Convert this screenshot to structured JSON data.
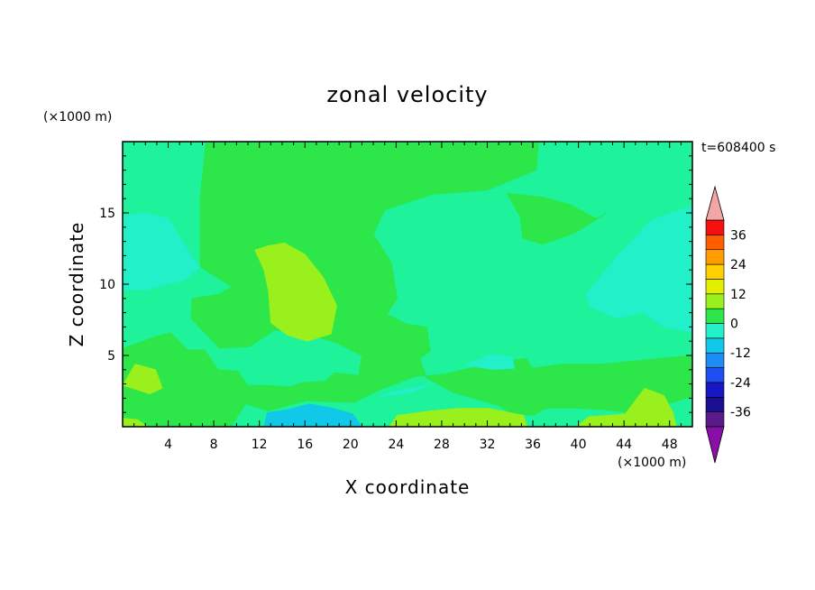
{
  "chart_data": {
    "type": "heatmap",
    "title": "zonal velocity",
    "xlabel": "X coordinate",
    "ylabel": "Z coordinate",
    "x_unit": "(×1000 m)",
    "y_unit": "(×1000 m)",
    "time_label": "t=608400 s",
    "xlim": [
      0,
      50
    ],
    "ylim": [
      0,
      20
    ],
    "x_ticks": [
      4,
      8,
      12,
      16,
      20,
      24,
      28,
      32,
      36,
      40,
      44,
      48
    ],
    "y_ticks": [
      5,
      10,
      15
    ],
    "colorbar": {
      "levels": [
        -42,
        -36,
        -30,
        -24,
        -18,
        -12,
        -6,
        0,
        6,
        12,
        18,
        24,
        30,
        36,
        42
      ],
      "tick_labels": [
        "36",
        "24",
        "12",
        "0",
        "-12",
        "-24",
        "-36"
      ],
      "colors": [
        "#5b1a8c",
        "#1a0f8f",
        "#1717c4",
        "#1f4ff0",
        "#1e8cf5",
        "#11c8e8",
        "#21f0c8",
        "#2ce64a",
        "#9af01c",
        "#e1f000",
        "#ffcf00",
        "#ff9d00",
        "#ff5e00",
        "#f50f0f"
      ],
      "over_color": "#f4a5a5",
      "under_color": "#8a0fa8"
    },
    "background_level_color": "#1ef29a",
    "regions": [
      {
        "level": "0 to 6",
        "color": "#2ce64a",
        "polygon": [
          [
            7.3,
            19.9
          ],
          [
            10.4,
            19.9
          ],
          [
            19.9,
            19.9
          ],
          [
            36.5,
            19.9
          ],
          [
            36.3,
            18.0
          ],
          [
            32.0,
            16.6
          ],
          [
            27.2,
            16.3
          ],
          [
            23.0,
            15.2
          ],
          [
            22.0,
            13.5
          ],
          [
            23.6,
            11.5
          ],
          [
            24.1,
            9.0
          ],
          [
            23.2,
            7.9
          ],
          [
            24.9,
            7.2
          ],
          [
            26.7,
            7.0
          ],
          [
            27.0,
            5.3
          ],
          [
            26.1,
            4.8
          ],
          [
            26.7,
            3.4
          ],
          [
            29.0,
            2.4
          ],
          [
            31.2,
            1.9
          ],
          [
            32.9,
            1.5
          ],
          [
            34.2,
            0.9
          ],
          [
            36.1,
            0.8
          ],
          [
            36.7,
            1.1
          ],
          [
            37.3,
            1.3
          ],
          [
            39.6,
            1.3
          ],
          [
            42.0,
            1.2
          ],
          [
            45.6,
            0.9
          ],
          [
            47.0,
            1.4
          ],
          [
            49.9,
            2.1
          ],
          [
            49.9,
            5.0
          ],
          [
            46.0,
            4.7
          ],
          [
            42.0,
            4.4
          ],
          [
            38.5,
            4.4
          ],
          [
            36.0,
            4.1
          ],
          [
            35.4,
            4.8
          ],
          [
            32.0,
            4.4
          ],
          [
            28.3,
            3.7
          ],
          [
            25.6,
            3.5
          ],
          [
            22.6,
            2.6
          ],
          [
            20.3,
            1.7
          ],
          [
            16.0,
            1.8
          ],
          [
            12.8,
            1.1
          ],
          [
            10.8,
            1.6
          ],
          [
            9.5,
            0.0
          ],
          [
            0,
            0
          ],
          [
            0,
            5.5
          ],
          [
            2.8,
            6.3
          ],
          [
            4.2,
            6.6
          ],
          [
            5.7,
            5.4
          ],
          [
            7.2,
            5.4
          ],
          [
            8.4,
            4.0
          ],
          [
            10.1,
            3.9
          ],
          [
            11.0,
            2.9
          ],
          [
            12.8,
            2.9
          ],
          [
            14.6,
            2.8
          ],
          [
            15.8,
            3.1
          ],
          [
            17.8,
            3.2
          ],
          [
            18.6,
            3.8
          ],
          [
            20.7,
            3.6
          ],
          [
            21.0,
            5.0
          ],
          [
            18.7,
            5.9
          ],
          [
            16.6,
            6.4
          ],
          [
            13.4,
            6.8
          ],
          [
            11.1,
            5.6
          ],
          [
            8.5,
            5.5
          ],
          [
            6.0,
            7.6
          ],
          [
            6.1,
            9.0
          ],
          [
            8.4,
            9.3
          ],
          [
            9.6,
            9.8
          ],
          [
            6.8,
            11.2
          ],
          [
            6.8,
            13.0
          ],
          [
            6.8,
            16.1
          ],
          [
            7.3,
            19.9
          ]
        ]
      },
      {
        "level": "0 to 6",
        "color": "#2ce64a",
        "polygon": [
          [
            33.7,
            16.4
          ],
          [
            36.9,
            16.1
          ],
          [
            39.2,
            15.6
          ],
          [
            41.6,
            14.6
          ],
          [
            42.5,
            15.0
          ],
          [
            39.7,
            13.6
          ],
          [
            36.9,
            12.8
          ],
          [
            35.1,
            13.2
          ],
          [
            34.9,
            14.7
          ],
          [
            33.7,
            16.4
          ]
        ]
      },
      {
        "level": "-6 to 0",
        "color": "#21f0c8",
        "polygon": [
          [
            0,
            14.8
          ],
          [
            2.0,
            15.0
          ],
          [
            4.0,
            14.6
          ],
          [
            6.2,
            11.8
          ],
          [
            6.8,
            11.2
          ],
          [
            5.4,
            10.3
          ],
          [
            2.1,
            9.6
          ],
          [
            0,
            9.6
          ]
        ]
      },
      {
        "level": "-6 to 0",
        "color": "#21f0c8",
        "polygon": [
          [
            40.7,
            9.3
          ],
          [
            43.3,
            11.9
          ],
          [
            46.4,
            14.5
          ],
          [
            49.9,
            15.5
          ],
          [
            49.9,
            6.6
          ],
          [
            47.5,
            7.0
          ],
          [
            45.6,
            8.0
          ],
          [
            43.4,
            7.6
          ],
          [
            41.0,
            8.4
          ],
          [
            40.7,
            9.3
          ]
        ]
      },
      {
        "level": "-6 to 0",
        "color": "#21f0c8",
        "polygon": [
          [
            30.0,
            4.3
          ],
          [
            32.3,
            5.1
          ],
          [
            34.2,
            4.9
          ],
          [
            34.4,
            4.1
          ],
          [
            32.6,
            4.0
          ],
          [
            30.0,
            4.3
          ]
        ]
      },
      {
        "level": "-6 to 0",
        "color": "#21f0c8",
        "polygon": [
          [
            22.5,
            2.1
          ],
          [
            25.4,
            2.4
          ],
          [
            27.3,
            3.1
          ],
          [
            25.9,
            2.8
          ],
          [
            23.6,
            2.4
          ],
          [
            22.5,
            2.1
          ]
        ]
      },
      {
        "level": "-6 to 0",
        "color": "#21f0c8",
        "polygon": [
          [
            0,
            0.0
          ],
          [
            0,
            2.2
          ],
          [
            1.9,
            1.5
          ],
          [
            3.2,
            1.1
          ],
          [
            3.7,
            0.0
          ]
        ]
      },
      {
        "level": "-12 to -6",
        "color": "#11c8e8",
        "polygon": [
          [
            12.4,
            0.0
          ],
          [
            12.7,
            1.0
          ],
          [
            14.5,
            1.2
          ],
          [
            16.4,
            1.6
          ],
          [
            18.5,
            1.3
          ],
          [
            20.2,
            0.9
          ],
          [
            21.0,
            0.0
          ]
        ]
      },
      {
        "level": "0 to 6",
        "color": "#2ce64a",
        "polygon": [
          [
            0,
            2.6
          ],
          [
            1.7,
            1.7
          ],
          [
            3.8,
            0.9
          ],
          [
            4.0,
            0.0
          ],
          [
            0,
            0.0
          ]
        ]
      },
      {
        "level": "6 to 12",
        "color": "#9af01c",
        "polygon": [
          [
            11.6,
            12.4
          ],
          [
            12.8,
            12.7
          ],
          [
            14.2,
            12.9
          ],
          [
            16.0,
            12.1
          ],
          [
            17.6,
            10.5
          ],
          [
            18.8,
            8.5
          ],
          [
            18.3,
            6.5
          ],
          [
            16.2,
            6.0
          ],
          [
            14.5,
            6.4
          ],
          [
            13.0,
            7.3
          ],
          [
            12.8,
            9.5
          ],
          [
            12.4,
            11.0
          ],
          [
            11.6,
            12.4
          ]
        ]
      },
      {
        "level": "6 to 12",
        "color": "#9af01c",
        "polygon": [
          [
            0,
            2.9
          ],
          [
            1.1,
            4.4
          ],
          [
            2.9,
            4.0
          ],
          [
            3.5,
            2.7
          ],
          [
            2.4,
            2.3
          ],
          [
            0,
            2.9
          ]
        ]
      },
      {
        "level": "6 to 12",
        "color": "#9af01c",
        "polygon": [
          [
            23.4,
            0.0
          ],
          [
            24.1,
            0.8
          ],
          [
            26.9,
            1.1
          ],
          [
            29.5,
            1.3
          ],
          [
            32.1,
            1.3
          ],
          [
            35.2,
            0.8
          ],
          [
            35.5,
            0.0
          ]
        ]
      },
      {
        "level": "6 to 12",
        "color": "#9af01c",
        "polygon": [
          [
            39.8,
            0.0
          ],
          [
            40.9,
            0.7
          ],
          [
            44.1,
            0.9
          ],
          [
            45.8,
            2.7
          ],
          [
            47.5,
            2.2
          ],
          [
            48.3,
            1.0
          ],
          [
            48.6,
            0.0
          ]
        ]
      },
      {
        "level": "6 to 12",
        "color": "#9af01c",
        "polygon": [
          [
            0,
            0.0
          ],
          [
            0,
            0.6
          ],
          [
            1.3,
            0.5
          ],
          [
            2.2,
            0.0
          ]
        ]
      }
    ]
  }
}
